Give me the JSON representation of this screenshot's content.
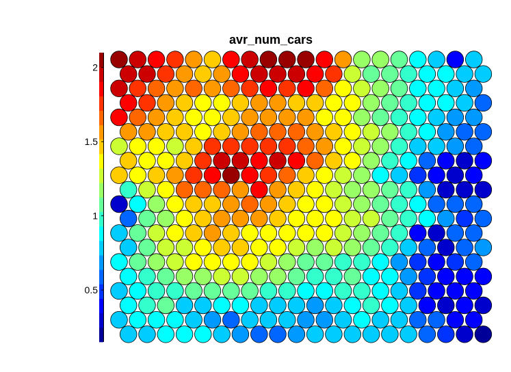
{
  "chart_data": {
    "type": "heatmap",
    "title": "avr_num_cars",
    "layout": "hexagonal",
    "rows": 20,
    "cols": 20,
    "colorbar": {
      "ticks": [
        "0.5",
        "1",
        "1.5",
        "2"
      ],
      "tick_values": [
        0.5,
        1,
        1.5,
        2
      ],
      "range": [
        0.15,
        2.1
      ],
      "levels": 20,
      "colormap": "jet"
    },
    "values": [
      [
        2.08,
        1.93,
        1.84,
        1.73,
        1.57,
        1.48,
        1.83,
        1.93,
        2.08,
        2.08,
        2.06,
        1.84,
        1.52,
        1.2,
        1.15,
        1.05,
        0.93,
        0.75,
        0.4,
        0.8
      ],
      [
        1.93,
        1.93,
        1.79,
        1.57,
        1.45,
        1.57,
        1.84,
        1.93,
        1.93,
        1.93,
        1.85,
        1.75,
        1.27,
        1.1,
        1.05,
        1.0,
        0.92,
        0.85,
        0.75,
        0.75
      ],
      [
        1.93,
        1.79,
        1.68,
        1.56,
        1.64,
        1.57,
        1.64,
        1.79,
        1.83,
        1.78,
        1.84,
        1.67,
        1.41,
        1.25,
        1.15,
        1.05,
        0.93,
        0.84,
        0.78,
        0.72
      ],
      [
        1.84,
        1.72,
        1.57,
        1.5,
        1.41,
        1.38,
        1.48,
        1.55,
        1.57,
        1.51,
        1.51,
        1.4,
        1.32,
        1.21,
        1.1,
        1.0,
        0.9,
        0.9,
        0.82,
        0.62
      ],
      [
        1.84,
        1.7,
        1.55,
        1.45,
        1.41,
        1.38,
        1.48,
        1.58,
        1.6,
        1.6,
        1.55,
        1.4,
        1.32,
        1.2,
        1.12,
        1.02,
        0.9,
        0.8,
        0.72,
        0.65
      ],
      [
        1.55,
        1.55,
        1.48,
        1.45,
        1.41,
        1.44,
        1.61,
        1.65,
        1.7,
        1.62,
        1.58,
        1.48,
        1.34,
        1.24,
        1.14,
        0.98,
        0.84,
        0.73,
        0.6,
        0.56
      ],
      [
        1.28,
        1.32,
        1.35,
        1.31,
        1.5,
        1.73,
        1.73,
        1.75,
        1.73,
        1.77,
        1.71,
        1.6,
        1.4,
        1.3,
        1.16,
        0.96,
        0.82,
        0.75,
        0.72,
        0.55
      ],
      [
        1.45,
        1.4,
        1.38,
        1.45,
        1.73,
        1.93,
        1.93,
        1.84,
        1.94,
        1.82,
        1.64,
        1.47,
        1.32,
        1.16,
        0.95,
        0.88,
        0.6,
        0.38,
        0.3,
        0.4
      ],
      [
        1.45,
        1.38,
        1.44,
        1.52,
        1.74,
        1.88,
        2.12,
        1.84,
        1.77,
        1.62,
        1.5,
        1.41,
        1.3,
        1.15,
        0.92,
        0.78,
        0.45,
        0.35,
        0.25,
        0.35
      ],
      [
        1.0,
        1.26,
        1.4,
        1.7,
        1.65,
        1.62,
        1.6,
        1.87,
        1.56,
        1.44,
        1.38,
        1.31,
        1.22,
        1.15,
        1.03,
        0.94,
        0.65,
        0.34,
        0.34,
        0.3
      ],
      [
        0.3,
        0.9,
        1.2,
        1.38,
        1.45,
        1.5,
        1.6,
        1.62,
        1.52,
        1.44,
        1.4,
        1.34,
        1.28,
        1.2,
        1.1,
        0.98,
        0.85,
        0.6,
        0.55,
        0.58
      ],
      [
        0.58,
        1.05,
        1.22,
        1.32,
        1.45,
        1.53,
        1.54,
        1.53,
        1.44,
        1.4,
        1.38,
        1.34,
        1.3,
        1.25,
        1.08,
        0.97,
        0.9,
        0.65,
        0.48,
        0.58
      ],
      [
        0.78,
        1.1,
        1.28,
        1.34,
        1.42,
        1.52,
        1.5,
        1.41,
        1.39,
        1.4,
        1.38,
        1.34,
        1.26,
        1.15,
        1.07,
        0.95,
        0.4,
        0.3,
        0.55,
        0.62
      ],
      [
        0.8,
        1.12,
        1.26,
        1.3,
        1.38,
        1.45,
        1.45,
        1.41,
        1.36,
        1.28,
        1.2,
        1.24,
        1.16,
        1.08,
        1.0,
        0.82,
        0.6,
        0.3,
        0.55,
        0.68
      ],
      [
        0.9,
        1.05,
        1.2,
        1.28,
        1.36,
        1.38,
        1.38,
        1.34,
        1.27,
        1.22,
        1.12,
        1.1,
        1.02,
        0.96,
        0.92,
        0.7,
        0.45,
        0.38,
        0.45,
        0.62
      ],
      [
        0.85,
        0.95,
        1.05,
        1.18,
        1.2,
        1.24,
        1.24,
        1.22,
        1.14,
        1.08,
        1.0,
        1.02,
        1.05,
        0.92,
        0.85,
        0.7,
        0.45,
        0.35,
        0.38,
        0.4
      ],
      [
        0.8,
        0.9,
        0.95,
        1.0,
        1.05,
        1.1,
        1.1,
        1.08,
        0.95,
        0.94,
        0.92,
        0.9,
        0.95,
        1.0,
        0.9,
        0.78,
        0.52,
        0.4,
        0.4,
        0.4
      ],
      [
        0.9,
        1.0,
        1.05,
        0.82,
        0.8,
        0.9,
        0.84,
        0.82,
        0.8,
        0.78,
        0.7,
        0.8,
        0.9,
        1.0,
        0.9,
        0.8,
        0.4,
        0.32,
        0.36,
        0.28
      ],
      [
        0.78,
        0.85,
        0.9,
        0.84,
        0.75,
        0.7,
        0.6,
        0.78,
        0.8,
        0.78,
        0.7,
        0.72,
        0.8,
        0.84,
        0.78,
        0.74,
        0.58,
        0.55,
        0.4,
        0.35
      ],
      [
        0.75,
        0.8,
        0.9,
        0.9,
        0.85,
        0.8,
        0.7,
        0.6,
        0.6,
        0.7,
        0.78,
        0.8,
        0.8,
        0.78,
        0.8,
        0.75,
        0.62,
        0.52,
        0.33,
        0.2
      ]
    ]
  }
}
